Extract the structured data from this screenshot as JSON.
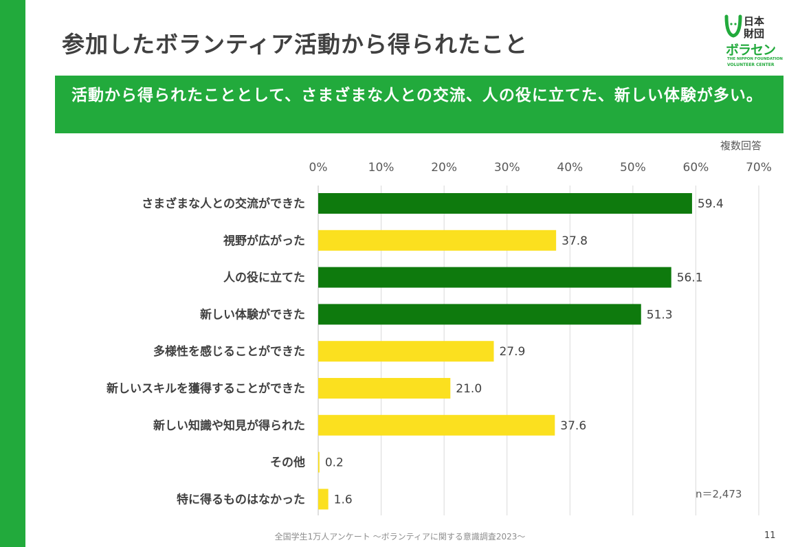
{
  "title": "参加したボランティア活動から得られたこと",
  "logo": {
    "line1": "日本",
    "line2": "財団",
    "brand": "ボラセン",
    "en_line1": "THE NIPPON FOUNDATION",
    "en_line2": "VOLUNTEER CENTER"
  },
  "banner": {
    "text": "活動から得られたこととして、さまざまな人との交流、人の役に立てた、新しい体験が多い。"
  },
  "note": {
    "multiple_answers": "複数回答",
    "n_label": "n＝2,473"
  },
  "footer": {
    "source": "全国学生1万人アンケート 〜ボランティアに関する意識調査2023〜",
    "page_number": "11"
  },
  "colors": {
    "accent": "#22aa3c",
    "highlight_bar": "#0e7a0d",
    "normal_bar": "#fbe01f"
  },
  "chart_data": {
    "type": "bar",
    "orientation": "horizontal",
    "categories": [
      "さまざまな人との交流ができた",
      "視野が広がった",
      "人の役に立てた",
      "新しい体験ができた",
      "多様性を感じることができた",
      "新しいスキルを獲得することができた",
      "新しい知識や知見が得られた",
      "その他",
      "特に得るものはなかった"
    ],
    "values": [
      59.4,
      37.8,
      56.1,
      51.3,
      27.9,
      21.0,
      37.6,
      0.2,
      1.6
    ],
    "value_labels": [
      "59.4",
      "37.8",
      "56.1",
      "51.3",
      "27.9",
      "21.0",
      "37.6",
      "0.2",
      "1.6"
    ],
    "highlighted": [
      true,
      false,
      true,
      true,
      false,
      false,
      false,
      false,
      false
    ],
    "xlim": [
      0,
      70
    ],
    "xticks": [
      0,
      10,
      20,
      30,
      40,
      50,
      60,
      70
    ],
    "xtick_labels": [
      "0%",
      "10%",
      "20%",
      "30%",
      "40%",
      "50%",
      "60%",
      "70%"
    ],
    "grid": true,
    "axis_position": "top"
  }
}
